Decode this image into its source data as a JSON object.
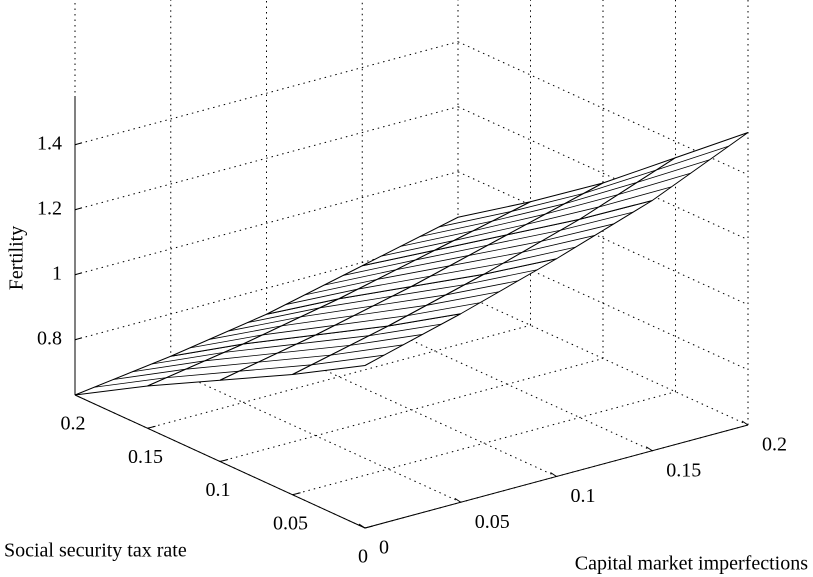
{
  "chart_data": {
    "type": "surface",
    "x_label": "Capital market imperfections",
    "y_label": "Social security tax rate",
    "z_label": "Fertility",
    "x": [
      0,
      0.05,
      0.1,
      0.15,
      0.2
    ],
    "y": [
      0,
      0.05,
      0.1,
      0.15,
      0.2
    ],
    "z": [
      [
        1.13,
        1.21,
        1.3,
        1.4,
        1.53
      ],
      [
        1.0,
        1.07,
        1.15,
        1.24,
        1.35
      ],
      [
        0.88,
        0.94,
        1.01,
        1.09,
        1.17
      ],
      [
        0.76,
        0.81,
        0.87,
        0.94,
        1.01
      ],
      [
        0.63,
        0.67,
        0.72,
        0.79,
        0.86
      ]
    ],
    "xlim": [
      0,
      0.2
    ],
    "ylim": [
      0,
      0.2
    ],
    "zlim": [
      0.63,
      1.55
    ],
    "xticks": [
      0,
      0.05,
      0.1,
      0.15,
      0.2
    ],
    "yticks": [
      0,
      0.05,
      0.1,
      0.15,
      0.2
    ],
    "zticks": [
      0.8,
      1,
      1.2,
      1.4
    ],
    "grid": true,
    "color": "#ffffff",
    "edge_color": "#000000"
  }
}
